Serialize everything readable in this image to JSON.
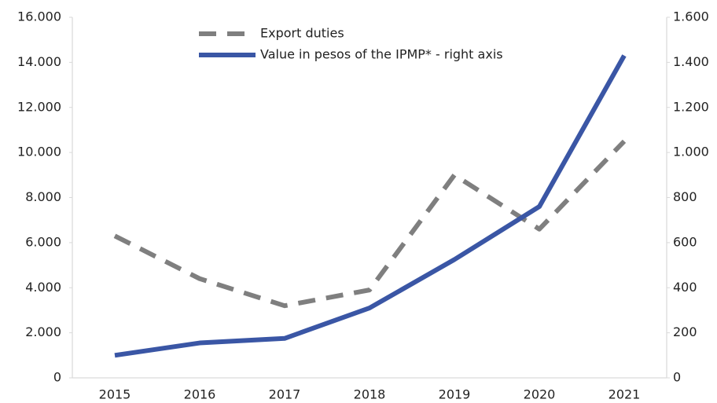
{
  "chart_data": {
    "type": "line",
    "categories": [
      "2015",
      "2016",
      "2017",
      "2018",
      "2019",
      "2020",
      "2021"
    ],
    "series": [
      {
        "name": "Export duties",
        "color": "#7f7f7f",
        "dashed": true,
        "values": [
          6300,
          4400,
          3200,
          3900,
          9000,
          6600,
          10500
        ]
      },
      {
        "name": "Value in pesos of the IPMP* - right axis",
        "color": "#3a56a5",
        "axis": "y2",
        "values": [
          100,
          155,
          175,
          310,
          525,
          760,
          1430
        ]
      }
    ],
    "ylim": [
      0,
      16000
    ],
    "yticks": [
      0,
      {
        "value": 2000,
        "label": "2.000"
      },
      {
        "value": 4000,
        "label": "4.000"
      },
      {
        "value": 6000,
        "label": "6.000"
      },
      {
        "value": 8000,
        "label": "8.000"
      },
      {
        "value": 10000,
        "label": "10.000"
      },
      {
        "value": 12000,
        "label": "12.000"
      },
      {
        "value": 14000,
        "label": "14.000"
      },
      {
        "value": 16000,
        "label": "16.000"
      }
    ],
    "y2lim": [
      0,
      1600
    ],
    "y2ticks": [
      0,
      200,
      400,
      600,
      800,
      {
        "value": 1000,
        "label": "1.000"
      },
      {
        "value": 1200,
        "label": "1.200"
      },
      {
        "value": 1400,
        "label": "1.400"
      },
      {
        "value": 1600,
        "label": "1.600"
      }
    ],
    "legend": "top"
  }
}
